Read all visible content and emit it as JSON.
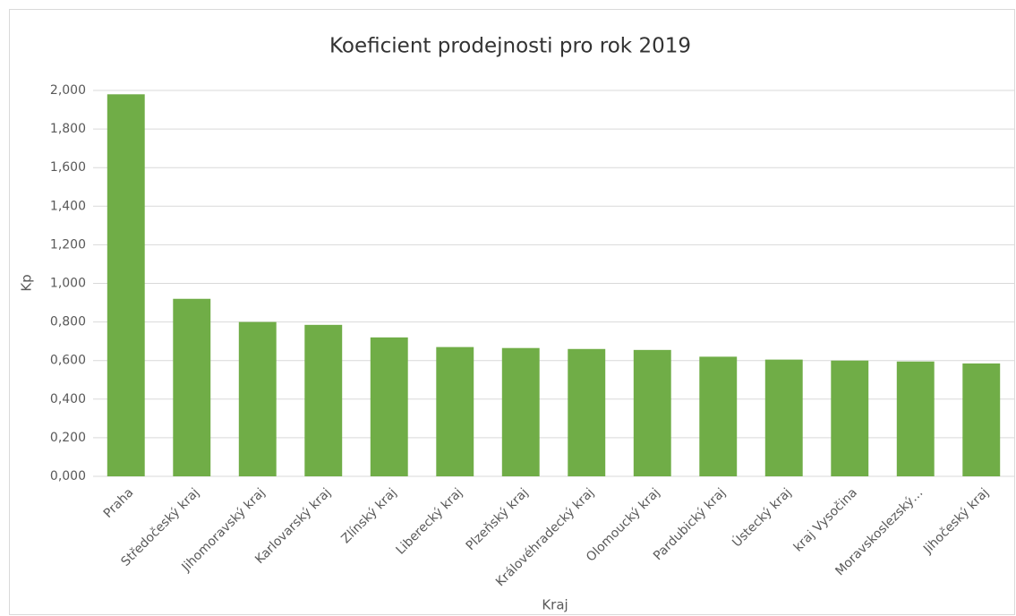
{
  "chart_data": {
    "type": "bar",
    "title": "Koeficient prodejnosti pro rok 2019",
    "x_label": "Kraj",
    "y_label": "Kp",
    "categories": [
      "Praha",
      "Středočeský kraj",
      "Jihomoravský kraj",
      "Karlovarský kraj",
      "Zlínský kraj",
      "Liberecký kraj",
      "Plzeňský kraj",
      "Královéhradecký kraj",
      "Olomoucký kraj",
      "Pardubický kraj",
      "Ústecký kraj",
      "kraj Vysočina",
      "Moravskoslezský…",
      "Jihočeský kraj"
    ],
    "values": [
      1.98,
      0.92,
      0.8,
      0.785,
      0.72,
      0.67,
      0.665,
      0.66,
      0.655,
      0.62,
      0.605,
      0.6,
      0.595,
      0.585
    ],
    "color": "#70ad47",
    "ylim": [
      0,
      2
    ],
    "yticks": [
      {
        "value": 0,
        "label": "0,000"
      },
      {
        "value": 0.2,
        "label": "0,200"
      },
      {
        "value": 0.4,
        "label": "0,400"
      },
      {
        "value": 0.6,
        "label": "0,600"
      },
      {
        "value": 0.8,
        "label": "0,800"
      },
      {
        "value": 1,
        "label": "1,000"
      },
      {
        "value": 1.2,
        "label": "1,200"
      },
      {
        "value": 1.4,
        "label": "1,400"
      },
      {
        "value": 1.6,
        "label": "1,600"
      },
      {
        "value": 1.8,
        "label": "1,800"
      },
      {
        "value": 2,
        "label": "2,000"
      }
    ],
    "grid": true
  }
}
